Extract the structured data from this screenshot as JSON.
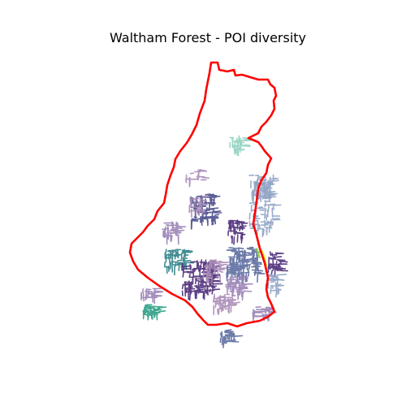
{
  "title": "Waltham Forest - POI diversity",
  "map": {
    "boundary_color": "#ff0000",
    "palette": {
      "dark_purple": "#4b2a78",
      "indigo": "#4a4d8c",
      "slate_blue": "#5b6b9e",
      "steel_blue": "#8fa3c4",
      "lavender": "#9a82b5",
      "mauve": "#a98bb7",
      "teal": "#2f7f86",
      "sea_green": "#2a9d84",
      "mint": "#8ed1bf",
      "lime": "#8bd646",
      "yellow": "#e6e619"
    }
  }
}
